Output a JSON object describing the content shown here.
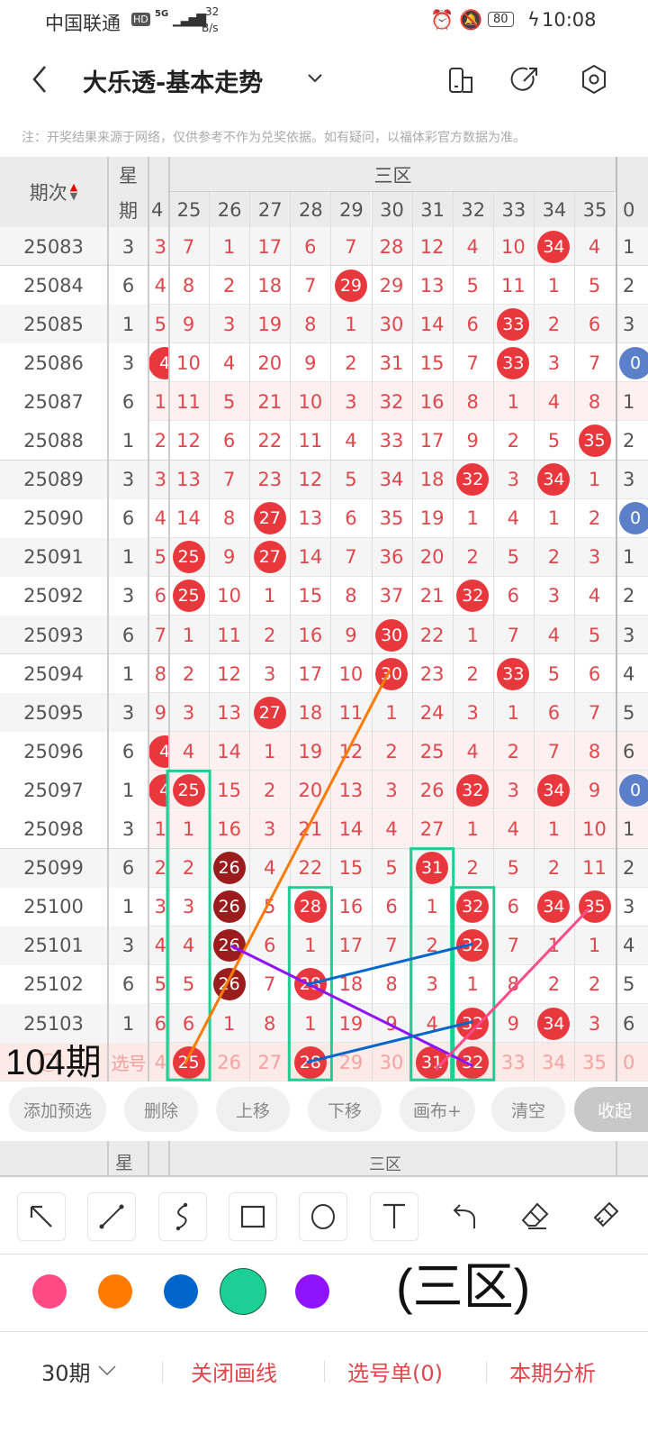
{
  "status": {
    "carrier": "中国联通",
    "hd": "HD",
    "net": "5G",
    "speed_value": "32",
    "speed_unit": "B/s",
    "battery": "80",
    "time": "10:08"
  },
  "header": {
    "title": "大乐透-基本走势"
  },
  "notice": "注：开奖结果来源于网络，仅供参考不作为兑奖依据。如有疑问，以福体彩官方数据为准。",
  "table": {
    "period_header": "期次",
    "week_header_1": "星",
    "week_header_2": "期",
    "zone_label": "三区",
    "left_partial_header": "4",
    "right_partial_header": "0",
    "columns": [
      "25",
      "26",
      "27",
      "28",
      "29",
      "30",
      "31",
      "32",
      "33",
      "34",
      "35"
    ],
    "rows": [
      {
        "period": "25083",
        "week": "3",
        "left": "3",
        "right": "1",
        "values": [
          "7",
          "1",
          "17",
          "6",
          "7",
          "28",
          "12",
          "4",
          "10",
          "34",
          "4"
        ],
        "hits": [
          9
        ]
      },
      {
        "period": "25084",
        "week": "6",
        "left": "4",
        "right": "2",
        "values": [
          "8",
          "2",
          "18",
          "7",
          "29",
          "29",
          "13",
          "5",
          "11",
          "1",
          "5"
        ],
        "hits": [
          4
        ]
      },
      {
        "period": "25085",
        "week": "1",
        "left": "5",
        "right": "3",
        "values": [
          "9",
          "3",
          "19",
          "8",
          "1",
          "30",
          "14",
          "6",
          "33",
          "2",
          "6"
        ],
        "hits": [
          8
        ]
      },
      {
        "period": "25086",
        "week": "3",
        "left": "4",
        "left_ball": true,
        "right": "0",
        "right_ball": true,
        "values": [
          "10",
          "4",
          "20",
          "9",
          "2",
          "31",
          "15",
          "7",
          "33",
          "3",
          "7"
        ],
        "hits": [
          8
        ]
      },
      {
        "period": "25087",
        "week": "6",
        "left": "1",
        "right": "1",
        "pink": true,
        "values": [
          "11",
          "5",
          "21",
          "10",
          "3",
          "32",
          "16",
          "8",
          "1",
          "4",
          "8"
        ],
        "hits": []
      },
      {
        "period": "25088",
        "week": "1",
        "left": "2",
        "right": "2",
        "values": [
          "12",
          "6",
          "22",
          "11",
          "4",
          "33",
          "17",
          "9",
          "2",
          "5",
          "35"
        ],
        "hits": [
          10
        ]
      },
      {
        "period": "25089",
        "week": "3",
        "left": "3",
        "right": "3",
        "values": [
          "13",
          "7",
          "23",
          "12",
          "5",
          "34",
          "18",
          "32",
          "3",
          "34",
          "1"
        ],
        "hits": [
          7,
          9
        ]
      },
      {
        "period": "25090",
        "week": "6",
        "left": "4",
        "right": "0",
        "right_ball": true,
        "values": [
          "14",
          "8",
          "27",
          "13",
          "6",
          "35",
          "19",
          "1",
          "4",
          "1",
          "2"
        ],
        "hits": [
          2
        ]
      },
      {
        "period": "25091",
        "week": "1",
        "left": "5",
        "right": "1",
        "values": [
          "25",
          "9",
          "27",
          "14",
          "7",
          "36",
          "20",
          "2",
          "5",
          "2",
          "3"
        ],
        "hits": [
          0,
          2
        ]
      },
      {
        "period": "25092",
        "week": "3",
        "left": "6",
        "right": "2",
        "values": [
          "25",
          "10",
          "1",
          "15",
          "8",
          "37",
          "21",
          "32",
          "6",
          "3",
          "4"
        ],
        "hits": [
          0,
          7
        ]
      },
      {
        "period": "25093",
        "week": "6",
        "left": "7",
        "right": "3",
        "values": [
          "1",
          "11",
          "2",
          "16",
          "9",
          "30",
          "22",
          "1",
          "7",
          "4",
          "5"
        ],
        "hits": [
          5
        ]
      },
      {
        "period": "25094",
        "week": "1",
        "left": "8",
        "right": "4",
        "values": [
          "2",
          "12",
          "3",
          "17",
          "10",
          "30",
          "23",
          "2",
          "33",
          "5",
          "6"
        ],
        "hits": [
          5,
          8
        ]
      },
      {
        "period": "25095",
        "week": "3",
        "left": "9",
        "right": "5",
        "values": [
          "3",
          "13",
          "27",
          "18",
          "11",
          "1",
          "24",
          "3",
          "1",
          "6",
          "7"
        ],
        "hits": [
          2
        ]
      },
      {
        "period": "25096",
        "week": "6",
        "left": "4",
        "left_ball": true,
        "right": "6",
        "pink": true,
        "values": [
          "4",
          "14",
          "1",
          "19",
          "12",
          "2",
          "25",
          "4",
          "2",
          "7",
          "8"
        ],
        "hits": []
      },
      {
        "period": "25097",
        "week": "1",
        "left": "4",
        "left_ball": true,
        "right": "0",
        "right_ball": true,
        "pink": true,
        "values": [
          "25",
          "15",
          "2",
          "20",
          "13",
          "3",
          "26",
          "32",
          "3",
          "34",
          "9"
        ],
        "hits": [
          0,
          7,
          9
        ]
      },
      {
        "period": "25098",
        "week": "3",
        "left": "1",
        "right": "1",
        "pink": true,
        "values": [
          "1",
          "16",
          "3",
          "21",
          "14",
          "4",
          "27",
          "1",
          "4",
          "1",
          "10"
        ],
        "hits": []
      },
      {
        "period": "25099",
        "week": "6",
        "left": "2",
        "right": "2",
        "values": [
          "2",
          "26",
          "4",
          "22",
          "15",
          "5",
          "31",
          "2",
          "5",
          "2",
          "11"
        ],
        "hits": [
          1,
          6
        ],
        "dark": [
          1
        ]
      },
      {
        "period": "25100",
        "week": "1",
        "left": "3",
        "right": "3",
        "values": [
          "3",
          "26",
          "5",
          "28",
          "16",
          "6",
          "1",
          "32",
          "6",
          "34",
          "35"
        ],
        "hits": [
          1,
          3,
          7,
          9,
          10
        ],
        "dark": [
          1
        ]
      },
      {
        "period": "25101",
        "week": "3",
        "left": "4",
        "right": "4",
        "values": [
          "4",
          "26",
          "6",
          "1",
          "17",
          "7",
          "2",
          "32",
          "7",
          "1",
          "1"
        ],
        "hits": [
          1,
          7
        ],
        "dark": [
          1
        ]
      },
      {
        "period": "25102",
        "week": "6",
        "left": "5",
        "right": "5",
        "values": [
          "5",
          "26",
          "7",
          "28",
          "18",
          "8",
          "3",
          "1",
          "8",
          "2",
          "2"
        ],
        "hits": [
          1,
          3
        ],
        "dark": [
          1
        ]
      },
      {
        "period": "25103",
        "week": "1",
        "left": "6",
        "right": "6",
        "values": [
          "6",
          "1",
          "8",
          "1",
          "19",
          "9",
          "4",
          "32",
          "9",
          "34",
          "3"
        ],
        "hits": [
          7,
          9
        ]
      }
    ],
    "preselect": {
      "label": "选号",
      "left": "4",
      "right": "0",
      "values": [
        "25",
        "26",
        "27",
        "28",
        "29",
        "30",
        "31",
        "32",
        "33",
        "34",
        "35"
      ],
      "hits": [
        0,
        3,
        6,
        7
      ]
    }
  },
  "annotations": {
    "period_text": "104期",
    "zone_text": "(三区)"
  },
  "actions": [
    "添加预选",
    "删除",
    "上移",
    "下移",
    "画布+",
    "清空",
    "收起"
  ],
  "tools": [
    "arrow-icon",
    "line-icon",
    "curve-icon",
    "rectangle-icon",
    "circle-icon",
    "text-icon",
    "undo-icon",
    "eraser-icon",
    "clear-brush-icon"
  ],
  "colors": {
    "swatches": [
      "#ff4a86",
      "#ff7a00",
      "#0066cc",
      "#1ccf94",
      "#9013fe"
    ],
    "selected": "#1ccf94",
    "accent": "#e0474c",
    "ball": "#e8383d",
    "ball_dark": "#9b1c1c",
    "ball_blue": "#5b7fc9"
  },
  "footer": {
    "period_select": "30期",
    "close_drawing": "关闭画线",
    "selection_list": "选号单(0)",
    "analysis": "本期分析"
  }
}
